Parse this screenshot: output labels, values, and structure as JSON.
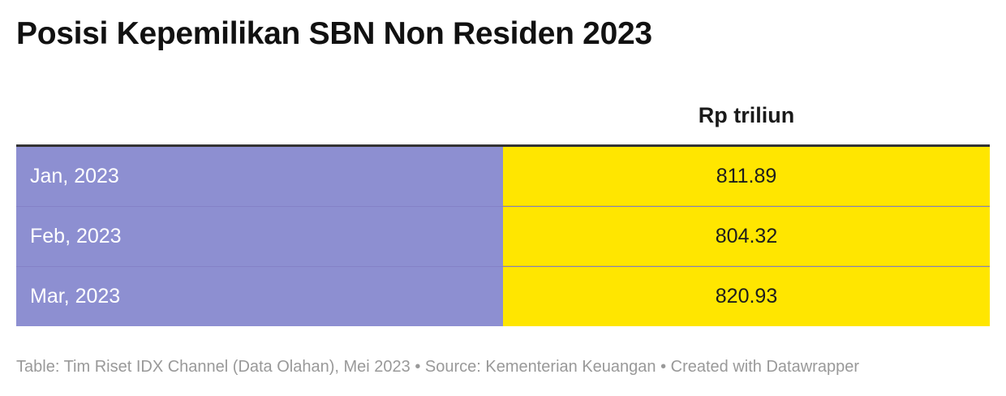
{
  "title": "Posisi Kepemilikan SBN Non Residen 2023",
  "colors": {
    "label_bg": "#8d8fd1",
    "value_bg": "#ffe600",
    "header_rule": "#333333"
  },
  "chart_data": {
    "type": "table",
    "title": "Posisi Kepemilikan SBN Non Residen 2023",
    "columns": [
      "",
      "Rp triliun"
    ],
    "rows": [
      {
        "label": "Jan, 2023",
        "value": "811.89"
      },
      {
        "label": "Feb, 2023",
        "value": "804.32"
      },
      {
        "label": "Mar, 2023",
        "value": "820.93"
      }
    ]
  },
  "footer": "Table: Tim Riset IDX Channel (Data Olahan), Mei 2023 • Source: Kementerian Keuangan • Created with Datawrapper"
}
